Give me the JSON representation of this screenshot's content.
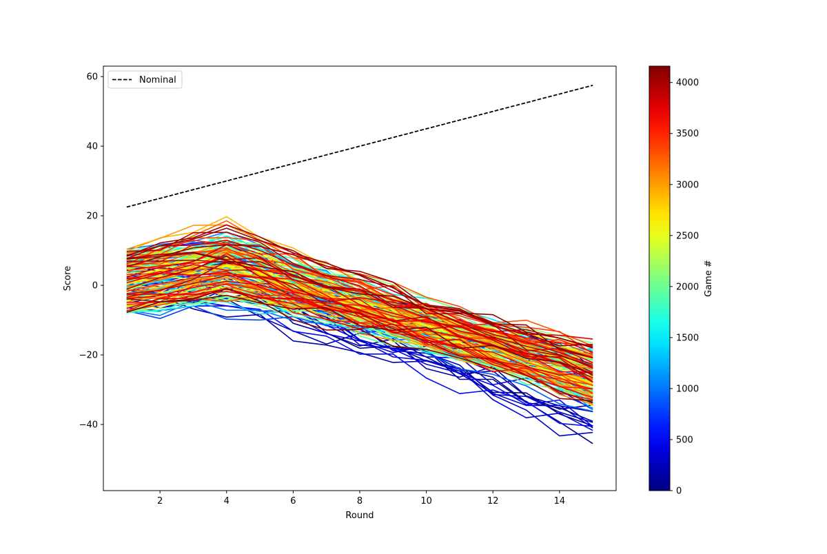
{
  "chart_data": {
    "type": "line",
    "xlabel": "Round",
    "ylabel": "Score",
    "xlim": [
      0.3,
      15.7
    ],
    "ylim": [
      -59,
      63
    ],
    "xticks": [
      2,
      4,
      6,
      8,
      10,
      12,
      14
    ],
    "yticks": [
      -40,
      -20,
      0,
      20,
      40,
      60
    ],
    "grid": false,
    "legend": {
      "placement": "top-left",
      "entries": [
        "Nominal"
      ]
    },
    "nominal": {
      "name": "Nominal",
      "color": "#000000",
      "style": "dashed",
      "x": [
        1,
        15
      ],
      "y": [
        22.5,
        57.5
      ]
    },
    "colorbar": {
      "label": "Game #",
      "colormap": "jet",
      "range": [
        0,
        4160
      ],
      "ticks": [
        0,
        500,
        1000,
        1500,
        2000,
        2500,
        3000,
        3500,
        4000
      ]
    },
    "game_series": {
      "x": [
        1,
        2,
        3,
        4,
        5,
        6,
        7,
        8,
        9,
        10,
        11,
        12,
        13,
        14,
        15
      ],
      "count": 160,
      "game_range": [
        0,
        4160
      ],
      "early_games": {
        "start_range": [
          -6,
          8
        ],
        "round2_range": [
          -3,
          6
        ],
        "end_range": [
          -52,
          -16
        ]
      },
      "late_games": {
        "start_range": [
          -8,
          11
        ],
        "peak_round": 4,
        "peak_range": [
          -2,
          13
        ],
        "end_range": [
          -34,
          -17
        ]
      }
    }
  }
}
